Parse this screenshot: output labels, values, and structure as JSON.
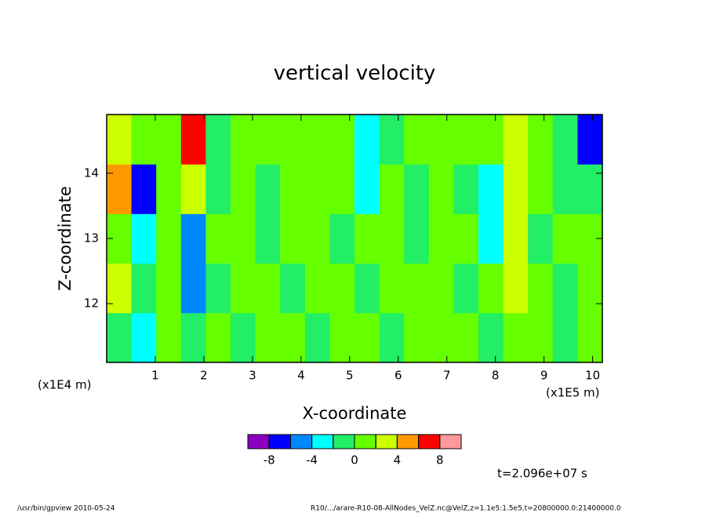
{
  "chart_data": {
    "type": "heatmap",
    "title": "vertical velocity",
    "x_label": "X-coordinate",
    "y_label": "Z-coordinate",
    "y_unit": "(x1E4 m)",
    "x_unit": "(x1E5 m)",
    "time_label": "t=2.096e+07 s",
    "footer_left": "/usr/bin/gpview  2010-05-24",
    "footer_right": "R10/.../arare-R10-08-AllNodes_VelZ.nc@VelZ,z=1.1e5:1.5e5,t=20800000.0:21400000.0",
    "x": [
      0.255,
      0.765,
      1.275,
      1.785,
      2.295,
      2.805,
      3.315,
      3.825,
      4.335,
      4.845,
      5.355,
      5.865,
      6.375,
      6.885,
      7.395,
      7.905,
      8.415,
      8.925,
      9.435,
      9.945
    ],
    "y": [
      11.48,
      12.24,
      13.0,
      13.76,
      14.52
    ],
    "z": [
      [
        -1,
        -3,
        1,
        -1,
        1,
        -1,
        1,
        1,
        -1,
        1,
        1,
        -1,
        1,
        1,
        1,
        -1,
        1,
        1,
        -1,
        1
      ],
      [
        3,
        -1,
        1,
        -5,
        -1,
        1,
        1,
        -1,
        1,
        1,
        -1,
        1,
        1,
        1,
        -1,
        1,
        3,
        1,
        -1,
        1
      ],
      [
        1,
        -3,
        1,
        -5,
        1,
        1,
        -1,
        1,
        1,
        -1,
        1,
        1,
        -1,
        1,
        1,
        -3,
        3,
        -1,
        1,
        1
      ],
      [
        5,
        -7,
        1,
        3,
        -1,
        1,
        -1,
        1,
        1,
        1,
        -3,
        1,
        -1,
        1,
        -1,
        -3,
        3,
        1,
        -1,
        -1
      ],
      [
        3,
        1,
        1,
        7,
        -1,
        1,
        1,
        1,
        1,
        1,
        -3,
        -1,
        1,
        1,
        1,
        1,
        3,
        1,
        -1,
        -7
      ]
    ],
    "xlim": [
      0,
      10.2
    ],
    "ylim": [
      11.1,
      14.9
    ],
    "xticks": [
      1,
      2,
      3,
      4,
      5,
      6,
      7,
      8,
      9,
      10
    ],
    "yticks": [
      12,
      13,
      14
    ],
    "colorbar": {
      "levels": [
        -8,
        -6,
        -4,
        -2,
        0,
        2,
        4,
        6,
        8
      ],
      "colors": [
        "#8c00c0",
        "#0000ff",
        "#0088ff",
        "#00ffff",
        "#22ee66",
        "#66ff00",
        "#ccff00",
        "#ff9900",
        "#ff0000",
        "#ff9999"
      ],
      "ticks": [
        -8,
        -4,
        0,
        4,
        8
      ]
    }
  }
}
